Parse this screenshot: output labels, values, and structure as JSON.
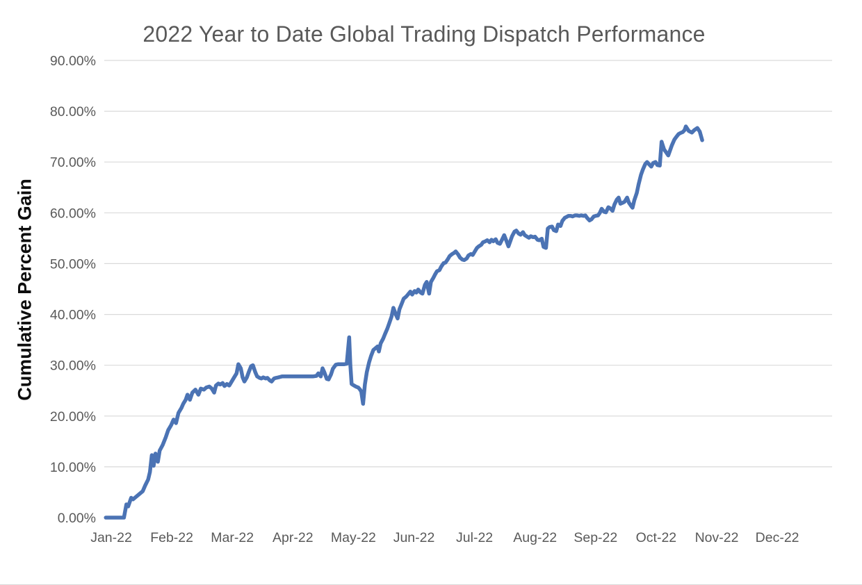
{
  "chart": {
    "title": "2022 Year to Date Global Trading Dispatch Performance",
    "ylabel": "Cumulative Percent Gain"
  },
  "chart_data": {
    "type": "line",
    "title": "2022 Year to Date Global Trading Dispatch Performance",
    "xlabel": "",
    "ylabel": "Cumulative Percent Gain",
    "legend": "none",
    "grid": "horizontal-only-no-zero-line",
    "x_tick_labels": [
      "Jan-22",
      "Feb-22",
      "Mar-22",
      "Apr-22",
      "May-22",
      "Jun-22",
      "Jul-22",
      "Aug-22",
      "Sep-22",
      "Oct-22",
      "Nov-22",
      "Dec-22"
    ],
    "y_tick_labels": [
      "0.00%",
      "10.00%",
      "20.00%",
      "30.00%",
      "40.00%",
      "50.00%",
      "60.00%",
      "70.00%",
      "80.00%",
      "90.00%"
    ],
    "y_ticks": [
      0,
      10,
      20,
      30,
      40,
      50,
      60,
      70,
      80,
      90
    ],
    "y_range": [
      0,
      90
    ],
    "x_range_months": [
      -0.12,
      11.95
    ],
    "line_color": "#4b73b4",
    "gridline_color": "#d9d9d9",
    "axis_text_color": "#595959",
    "title_color": "#595959",
    "series": [
      {
        "name": "Cumulative Percent Gain",
        "x_unit": "months-after-Jan-2022-tick",
        "y_unit": "percent",
        "points": [
          [
            -0.09,
            0
          ],
          [
            0.1,
            0
          ],
          [
            0.21,
            0
          ],
          [
            0.25,
            2.6
          ],
          [
            0.28,
            2.2
          ],
          [
            0.33,
            3.9
          ],
          [
            0.36,
            3.6
          ],
          [
            0.4,
            4.0
          ],
          [
            0.46,
            4.6
          ],
          [
            0.52,
            5.2
          ],
          [
            0.56,
            6.3
          ],
          [
            0.61,
            7.5
          ],
          [
            0.64,
            9.0
          ],
          [
            0.67,
            12.3
          ],
          [
            0.7,
            10.2
          ],
          [
            0.73,
            12.6
          ],
          [
            0.77,
            11.0
          ],
          [
            0.8,
            13.2
          ],
          [
            0.85,
            14.3
          ],
          [
            0.9,
            15.8
          ],
          [
            0.94,
            17.2
          ],
          [
            0.99,
            18.2
          ],
          [
            1.03,
            19.3
          ],
          [
            1.07,
            18.6
          ],
          [
            1.11,
            20.6
          ],
          [
            1.16,
            21.6
          ],
          [
            1.19,
            22.4
          ],
          [
            1.23,
            23.2
          ],
          [
            1.26,
            24.2
          ],
          [
            1.3,
            23.2
          ],
          [
            1.34,
            24.6
          ],
          [
            1.39,
            25.2
          ],
          [
            1.44,
            24.2
          ],
          [
            1.48,
            25.4
          ],
          [
            1.53,
            25.2
          ],
          [
            1.57,
            25.6
          ],
          [
            1.62,
            25.8
          ],
          [
            1.66,
            25.4
          ],
          [
            1.7,
            24.6
          ],
          [
            1.73,
            26.0
          ],
          [
            1.77,
            26.4
          ],
          [
            1.8,
            26.2
          ],
          [
            1.84,
            26.5
          ],
          [
            1.87,
            25.9
          ],
          [
            1.91,
            26.3
          ],
          [
            1.95,
            26.0
          ],
          [
            2.0,
            27.0
          ],
          [
            2.03,
            27.6
          ],
          [
            2.07,
            28.4
          ],
          [
            2.1,
            30.2
          ],
          [
            2.14,
            29.4
          ],
          [
            2.17,
            27.6
          ],
          [
            2.2,
            26.8
          ],
          [
            2.24,
            27.6
          ],
          [
            2.27,
            28.6
          ],
          [
            2.31,
            29.8
          ],
          [
            2.34,
            30.0
          ],
          [
            2.38,
            28.6
          ],
          [
            2.41,
            27.8
          ],
          [
            2.45,
            27.5
          ],
          [
            2.48,
            27.4
          ],
          [
            2.51,
            27.6
          ],
          [
            2.55,
            27.4
          ],
          [
            2.58,
            27.5
          ],
          [
            2.62,
            27.0
          ],
          [
            2.65,
            26.8
          ],
          [
            2.69,
            27.4
          ],
          [
            2.72,
            27.5
          ],
          [
            2.76,
            27.6
          ],
          [
            2.79,
            27.7
          ],
          [
            2.82,
            27.8
          ],
          [
            2.87,
            27.8
          ],
          [
            2.93,
            27.8
          ],
          [
            2.99,
            27.8
          ],
          [
            3.04,
            27.8
          ],
          [
            3.1,
            27.8
          ],
          [
            3.16,
            27.8
          ],
          [
            3.21,
            27.8
          ],
          [
            3.27,
            27.8
          ],
          [
            3.33,
            27.8
          ],
          [
            3.39,
            27.9
          ],
          [
            3.42,
            28.4
          ],
          [
            3.46,
            27.8
          ],
          [
            3.49,
            29.4
          ],
          [
            3.52,
            28.6
          ],
          [
            3.56,
            27.3
          ],
          [
            3.59,
            27.2
          ],
          [
            3.63,
            28.2
          ],
          [
            3.66,
            29.3
          ],
          [
            3.71,
            30.1
          ],
          [
            3.75,
            30.2
          ],
          [
            3.8,
            30.2
          ],
          [
            3.85,
            30.2
          ],
          [
            3.89,
            30.3
          ],
          [
            3.93,
            35.5
          ],
          [
            3.95,
            30.0
          ],
          [
            3.97,
            26.3
          ],
          [
            4.01,
            26.0
          ],
          [
            4.04,
            25.8
          ],
          [
            4.08,
            25.6
          ],
          [
            4.11,
            25.2
          ],
          [
            4.13,
            24.8
          ],
          [
            4.16,
            22.4
          ],
          [
            4.19,
            26.2
          ],
          [
            4.22,
            28.6
          ],
          [
            4.26,
            30.6
          ],
          [
            4.29,
            31.8
          ],
          [
            4.33,
            33.0
          ],
          [
            4.4,
            33.7
          ],
          [
            4.42,
            32.7
          ],
          [
            4.45,
            34.3
          ],
          [
            4.49,
            35.2
          ],
          [
            4.52,
            36.1
          ],
          [
            4.56,
            37.2
          ],
          [
            4.59,
            38.2
          ],
          [
            4.63,
            39.6
          ],
          [
            4.66,
            41.3
          ],
          [
            4.7,
            40.0
          ],
          [
            4.73,
            39.2
          ],
          [
            4.76,
            41.0
          ],
          [
            4.8,
            42.2
          ],
          [
            4.83,
            43.1
          ],
          [
            4.87,
            43.5
          ],
          [
            4.9,
            43.9
          ],
          [
            4.94,
            44.5
          ],
          [
            4.97,
            43.9
          ],
          [
            5.01,
            44.6
          ],
          [
            5.04,
            44.3
          ],
          [
            5.07,
            44.9
          ],
          [
            5.11,
            44.3
          ],
          [
            5.14,
            44.1
          ],
          [
            5.18,
            45.8
          ],
          [
            5.21,
            46.4
          ],
          [
            5.25,
            44.1
          ],
          [
            5.28,
            46.4
          ],
          [
            5.32,
            47.2
          ],
          [
            5.35,
            47.9
          ],
          [
            5.38,
            48.5
          ],
          [
            5.42,
            48.7
          ],
          [
            5.45,
            49.4
          ],
          [
            5.49,
            50.1
          ],
          [
            5.52,
            50.2
          ],
          [
            5.56,
            50.9
          ],
          [
            5.59,
            51.5
          ],
          [
            5.63,
            51.9
          ],
          [
            5.66,
            52.1
          ],
          [
            5.69,
            52.4
          ],
          [
            5.73,
            51.8
          ],
          [
            5.76,
            51.2
          ],
          [
            5.8,
            50.8
          ],
          [
            5.83,
            50.7
          ],
          [
            5.87,
            51.0
          ],
          [
            5.9,
            51.6
          ],
          [
            5.94,
            51.9
          ],
          [
            5.97,
            51.7
          ],
          [
            6.0,
            52.3
          ],
          [
            6.04,
            53.1
          ],
          [
            6.07,
            53.4
          ],
          [
            6.11,
            53.7
          ],
          [
            6.14,
            54.2
          ],
          [
            6.18,
            54.4
          ],
          [
            6.21,
            54.6
          ],
          [
            6.25,
            54.2
          ],
          [
            6.28,
            54.7
          ],
          [
            6.31,
            54.4
          ],
          [
            6.35,
            54.8
          ],
          [
            6.38,
            54.1
          ],
          [
            6.42,
            53.9
          ],
          [
            6.45,
            54.6
          ],
          [
            6.49,
            55.6
          ],
          [
            6.52,
            54.7
          ],
          [
            6.56,
            53.4
          ],
          [
            6.59,
            54.4
          ],
          [
            6.62,
            55.4
          ],
          [
            6.66,
            56.3
          ],
          [
            6.69,
            56.5
          ],
          [
            6.73,
            55.9
          ],
          [
            6.76,
            55.7
          ],
          [
            6.8,
            56.2
          ],
          [
            6.83,
            55.6
          ],
          [
            6.87,
            55.3
          ],
          [
            6.9,
            55.1
          ],
          [
            6.93,
            55.4
          ],
          [
            6.97,
            55.2
          ],
          [
            7.0,
            55.3
          ],
          [
            7.04,
            54.7
          ],
          [
            7.07,
            54.6
          ],
          [
            7.11,
            54.9
          ],
          [
            7.14,
            53.3
          ],
          [
            7.18,
            53.1
          ],
          [
            7.21,
            56.9
          ],
          [
            7.24,
            57.2
          ],
          [
            7.28,
            57.3
          ],
          [
            7.31,
            56.6
          ],
          [
            7.35,
            56.4
          ],
          [
            7.38,
            57.7
          ],
          [
            7.42,
            57.4
          ],
          [
            7.45,
            58.4
          ],
          [
            7.49,
            59.0
          ],
          [
            7.52,
            59.2
          ],
          [
            7.55,
            59.4
          ],
          [
            7.59,
            59.4
          ],
          [
            7.62,
            59.3
          ],
          [
            7.66,
            59.5
          ],
          [
            7.69,
            59.5
          ],
          [
            7.73,
            59.4
          ],
          [
            7.76,
            59.5
          ],
          [
            7.8,
            59.4
          ],
          [
            7.83,
            59.5
          ],
          [
            7.86,
            59.0
          ],
          [
            7.9,
            58.5
          ],
          [
            7.93,
            58.7
          ],
          [
            7.97,
            59.3
          ],
          [
            8.0,
            59.4
          ],
          [
            8.04,
            59.5
          ],
          [
            8.07,
            60.0
          ],
          [
            8.1,
            60.8
          ],
          [
            8.14,
            60.2
          ],
          [
            8.17,
            60.1
          ],
          [
            8.21,
            61.1
          ],
          [
            8.24,
            60.9
          ],
          [
            8.28,
            60.4
          ],
          [
            8.31,
            61.6
          ],
          [
            8.35,
            62.6
          ],
          [
            8.38,
            63.0
          ],
          [
            8.41,
            61.8
          ],
          [
            8.45,
            62.0
          ],
          [
            8.48,
            62.2
          ],
          [
            8.52,
            63.0
          ],
          [
            8.55,
            62.0
          ],
          [
            8.59,
            61.3
          ],
          [
            8.61,
            61.0
          ],
          [
            8.64,
            62.5
          ],
          [
            8.68,
            63.9
          ],
          [
            8.71,
            65.6
          ],
          [
            8.75,
            67.5
          ],
          [
            8.78,
            68.5
          ],
          [
            8.82,
            69.6
          ],
          [
            8.85,
            70.0
          ],
          [
            8.88,
            69.6
          ],
          [
            8.92,
            69.1
          ],
          [
            8.95,
            69.8
          ],
          [
            8.99,
            70.0
          ],
          [
            9.02,
            69.4
          ],
          [
            9.06,
            69.3
          ],
          [
            9.09,
            74.0
          ],
          [
            9.13,
            72.5
          ],
          [
            9.16,
            72.0
          ],
          [
            9.2,
            71.3
          ],
          [
            9.23,
            72.3
          ],
          [
            9.26,
            73.3
          ],
          [
            9.3,
            74.4
          ],
          [
            9.33,
            74.9
          ],
          [
            9.37,
            75.5
          ],
          [
            9.4,
            75.7
          ],
          [
            9.44,
            75.9
          ],
          [
            9.47,
            76.3
          ],
          [
            9.49,
            77.0
          ],
          [
            9.54,
            76.1
          ],
          [
            9.59,
            75.8
          ],
          [
            9.63,
            76.3
          ],
          [
            9.68,
            76.7
          ],
          [
            9.72,
            76.0
          ],
          [
            9.76,
            74.3
          ]
        ]
      }
    ]
  }
}
